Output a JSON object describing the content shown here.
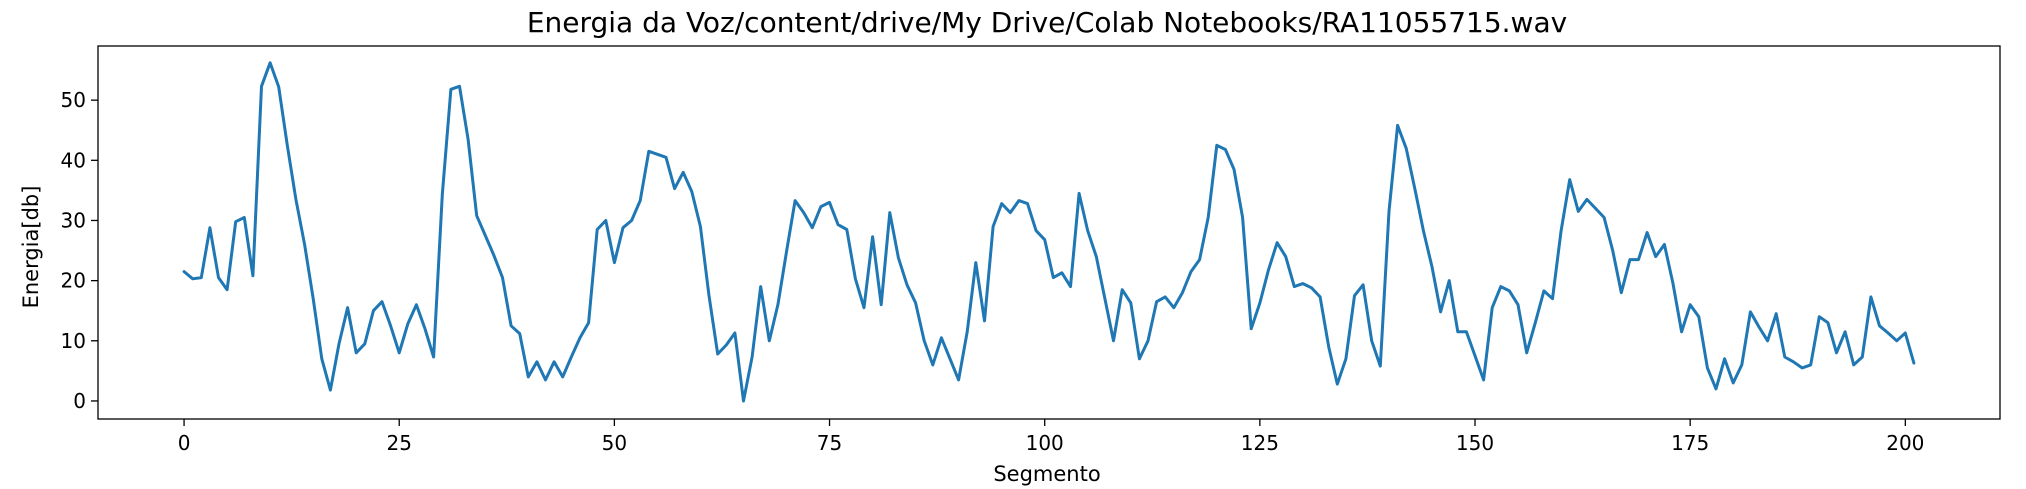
{
  "chart_data": {
    "type": "line",
    "title": "Energia da Voz/content/drive/My Drive/Colab Notebooks/RA11055715.wav",
    "xlabel": "Segmento",
    "ylabel": "Energia[db]",
    "xlim": [
      -10,
      211
    ],
    "ylim": [
      -3,
      59
    ],
    "xticks": [
      0,
      25,
      50,
      75,
      100,
      125,
      150,
      175,
      200
    ],
    "yticks": [
      0,
      10,
      20,
      30,
      40,
      50
    ],
    "grid": false,
    "legend": "none",
    "line_color": "#1f77b4",
    "series": [
      {
        "values": [
          21.5,
          20.3,
          20.5,
          28.8,
          20.5,
          18.5,
          29.8,
          30.5,
          20.8,
          52.3,
          56.2,
          52.2,
          42.5,
          33.5,
          26.0,
          17.0,
          7.0,
          1.8,
          9.5,
          15.5,
          8.0,
          9.5,
          15.0,
          16.5,
          12.5,
          8.0,
          12.8,
          16.0,
          12.0,
          7.3,
          34.3,
          51.8,
          52.3,
          43.5,
          30.8,
          27.5,
          24.2,
          20.5,
          12.5,
          11.2,
          4.0,
          6.5,
          3.5,
          6.5,
          4.0,
          7.3,
          10.5,
          13.0,
          28.5,
          30.0,
          23.0,
          28.8,
          30.0,
          33.3,
          41.5,
          41.0,
          40.5,
          35.3,
          38.0,
          34.8,
          29.0,
          17.5,
          7.8,
          9.3,
          11.3,
          0.0,
          7.3,
          19.0,
          10.0,
          16.0,
          24.8,
          33.3,
          31.3,
          28.8,
          32.3,
          33.0,
          29.3,
          28.5,
          20.3,
          15.5,
          27.3,
          16.0,
          31.3,
          23.8,
          19.3,
          16.3,
          10.0,
          6.0,
          10.5,
          7.0,
          3.5,
          11.5,
          23.0,
          13.3,
          29.0,
          32.8,
          31.3,
          33.3,
          32.8,
          28.3,
          26.8,
          20.5,
          21.3,
          19.0,
          34.5,
          28.3,
          24.0,
          17.0,
          10.0,
          18.5,
          16.3,
          7.0,
          10.0,
          16.5,
          17.3,
          15.5,
          18.0,
          21.5,
          23.5,
          30.5,
          42.5,
          41.8,
          38.5,
          30.5,
          12.0,
          16.3,
          21.8,
          26.3,
          24.0,
          19.0,
          19.5,
          18.8,
          17.3,
          9.0,
          2.8,
          7.0,
          17.5,
          19.3,
          10.0,
          5.8,
          31.5,
          45.8,
          42.0,
          35.3,
          28.3,
          22.3,
          14.8,
          20.0,
          11.5,
          11.5,
          7.5,
          3.5,
          15.5,
          19.0,
          18.3,
          16.0,
          8.0,
          13.0,
          18.3,
          17.0,
          28.3,
          36.8,
          31.5,
          33.5,
          32.0,
          30.5,
          25.0,
          18.0,
          23.5,
          23.5,
          28.0,
          24.0,
          26.0,
          19.5,
          11.5,
          16.0,
          14.0,
          5.5,
          2.0,
          7.0,
          3.0,
          6.0,
          14.8,
          12.3,
          10.0,
          14.5,
          7.3,
          6.5,
          5.5,
          6.0,
          14.0,
          13.0,
          8.0,
          11.5,
          6.0,
          7.3,
          17.3,
          12.5,
          11.3,
          10.0,
          11.3,
          6.3
        ]
      }
    ]
  }
}
